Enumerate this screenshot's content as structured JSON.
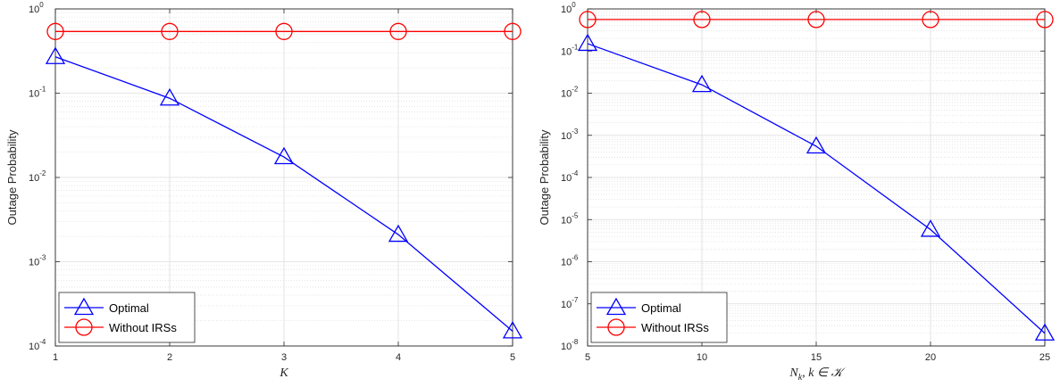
{
  "chart_data": [
    {
      "type": "line",
      "xlabel": "K",
      "ylabel": "Outage Probability",
      "x": [
        1,
        2,
        3,
        4,
        5
      ],
      "xlim": [
        1,
        5
      ],
      "xticks": [
        1,
        2,
        3,
        4,
        5
      ],
      "ylim": [
        0.0001,
        1
      ],
      "yscale": "log",
      "yticks": [
        {
          "mant": "10",
          "exp": "-4"
        },
        {
          "mant": "10",
          "exp": "-3"
        },
        {
          "mant": "10",
          "exp": "-2"
        },
        {
          "mant": "10",
          "exp": "-1"
        },
        {
          "mant": "10",
          "exp": "0"
        }
      ],
      "grid": true,
      "legend_position": "bottom-left",
      "series": [
        {
          "name": "Optimal",
          "color": "#0000ff",
          "marker": "triangle",
          "values": [
            0.27,
            0.087,
            0.0175,
            0.0021,
            0.00015
          ]
        },
        {
          "name": "Without IRSs",
          "color": "#ff0000",
          "marker": "circle",
          "values": [
            0.54,
            0.54,
            0.54,
            0.54,
            0.54
          ]
        }
      ]
    },
    {
      "type": "line",
      "xlabel": "N_k, k ∈ 𝒦",
      "ylabel": "Outage Probability",
      "x": [
        5,
        10,
        15,
        20,
        25
      ],
      "xlim": [
        5,
        25
      ],
      "xticks": [
        5,
        10,
        15,
        20,
        25
      ],
      "ylim": [
        1e-08,
        1
      ],
      "yscale": "log",
      "yticks": [
        {
          "mant": "10",
          "exp": "-8"
        },
        {
          "mant": "10",
          "exp": "-7"
        },
        {
          "mant": "10",
          "exp": "-6"
        },
        {
          "mant": "10",
          "exp": "-5"
        },
        {
          "mant": "10",
          "exp": "-4"
        },
        {
          "mant": "10",
          "exp": "-3"
        },
        {
          "mant": "10",
          "exp": "-2"
        },
        {
          "mant": "10",
          "exp": "-1"
        },
        {
          "mant": "10",
          "exp": "0"
        }
      ],
      "grid": true,
      "legend_position": "bottom-left",
      "series": [
        {
          "name": "Optimal",
          "color": "#0000ff",
          "marker": "triangle",
          "values": [
            0.15,
            0.0158,
            0.00055,
            5.8e-06,
            2e-08
          ]
        },
        {
          "name": "Without IRSs",
          "color": "#ff0000",
          "marker": "circle",
          "values": [
            0.56,
            0.56,
            0.56,
            0.56,
            0.56
          ]
        }
      ]
    }
  ]
}
